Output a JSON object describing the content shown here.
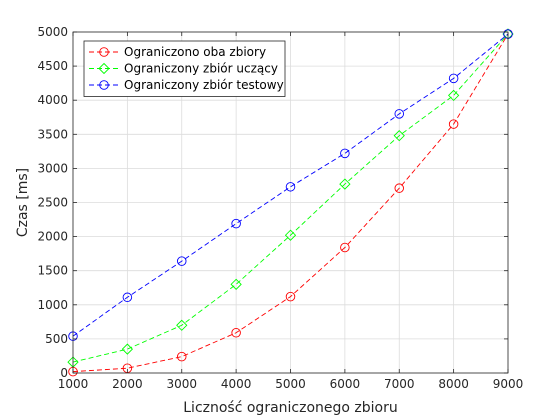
{
  "chart_data": {
    "type": "line",
    "title": "",
    "xlabel": "Liczność ograniczonego zbioru",
    "ylabel": "Czas [ms]",
    "xlim": [
      1000,
      9000
    ],
    "ylim": [
      0,
      5000
    ],
    "xticks": [
      1000,
      2000,
      3000,
      4000,
      5000,
      6000,
      7000,
      8000,
      9000
    ],
    "yticks": [
      0,
      500,
      1000,
      1500,
      2000,
      2500,
      3000,
      3500,
      4000,
      4500,
      5000
    ],
    "grid": true,
    "legend_position": "top-left",
    "x": [
      1000,
      2000,
      3000,
      4000,
      5000,
      6000,
      7000,
      8000,
      9000
    ],
    "series": [
      {
        "name": "Ograniczono oba zbiory",
        "color": "#ff0000",
        "marker": "circle",
        "line_style": "dashed",
        "values": [
          20,
          70,
          240,
          590,
          1120,
          1840,
          2710,
          3650,
          4970
        ]
      },
      {
        "name": "Ograniczony zbiór uczący",
        "color": "#00ff00",
        "marker": "diamond",
        "line_style": "dashed",
        "values": [
          160,
          350,
          700,
          1300,
          2020,
          2770,
          3480,
          4070,
          4970
        ]
      },
      {
        "name": "Ograniczony zbiór testowy",
        "color": "#0000ff",
        "marker": "circle",
        "line_style": "dashed",
        "values": [
          540,
          1110,
          1640,
          2190,
          2730,
          3220,
          3800,
          4320,
          4970
        ]
      }
    ]
  }
}
